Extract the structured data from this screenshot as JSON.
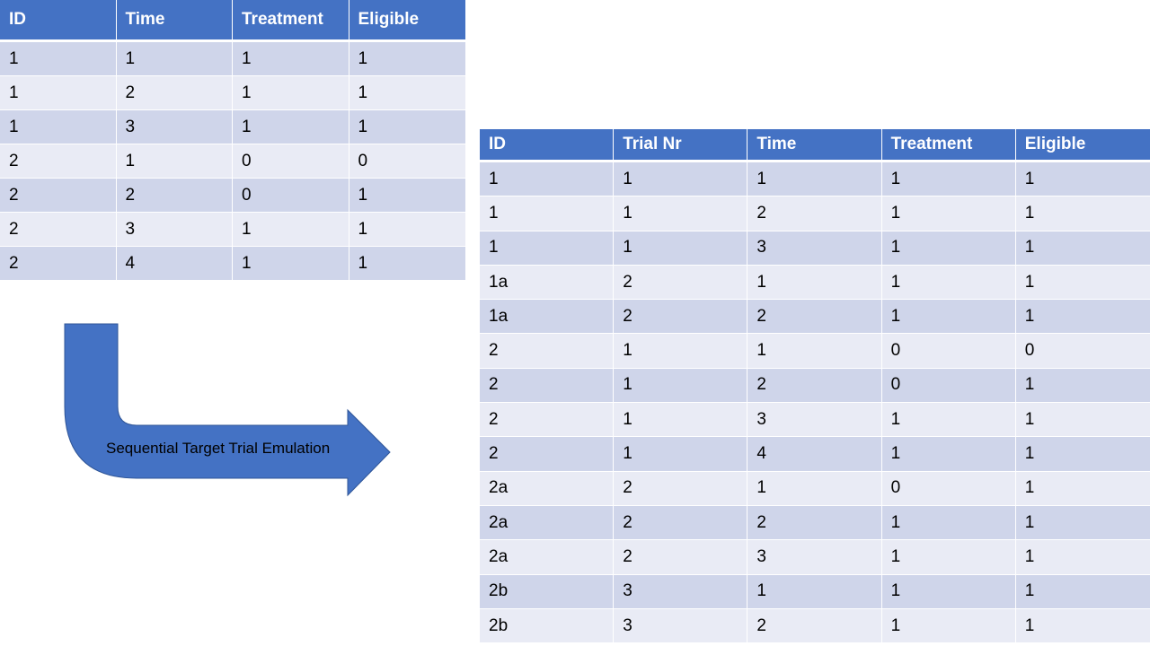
{
  "source_table": {
    "headers": [
      "ID",
      "Time",
      "Treatment",
      "Eligible"
    ],
    "rows": [
      [
        "1",
        "1",
        "1",
        "1"
      ],
      [
        "1",
        "2",
        "1",
        "1"
      ],
      [
        "1",
        "3",
        "1",
        "1"
      ],
      [
        "2",
        "1",
        "0",
        "0"
      ],
      [
        "2",
        "2",
        "0",
        "1"
      ],
      [
        "2",
        "3",
        "1",
        "1"
      ],
      [
        "2",
        "4",
        "1",
        "1"
      ]
    ]
  },
  "arrow": {
    "label": "Sequential Target Trial Emulation",
    "fill_color": "#4472c4"
  },
  "result_table": {
    "headers": [
      "ID",
      "Trial Nr",
      "Time",
      "Treatment",
      "Eligible"
    ],
    "rows": [
      [
        "1",
        "1",
        "1",
        "1",
        "1"
      ],
      [
        "1",
        "1",
        "2",
        "1",
        "1"
      ],
      [
        "1",
        "1",
        "3",
        "1",
        "1"
      ],
      [
        "1a",
        "2",
        "1",
        "1",
        "1"
      ],
      [
        "1a",
        "2",
        "2",
        "1",
        "1"
      ],
      [
        "2",
        "1",
        "1",
        "0",
        "0"
      ],
      [
        "2",
        "1",
        "2",
        "0",
        "1"
      ],
      [
        "2",
        "1",
        "3",
        "1",
        "1"
      ],
      [
        "2",
        "1",
        "4",
        "1",
        "1"
      ],
      [
        "2a",
        "2",
        "1",
        "0",
        "1"
      ],
      [
        "2a",
        "2",
        "2",
        "1",
        "1"
      ],
      [
        "2a",
        "2",
        "3",
        "1",
        "1"
      ],
      [
        "2b",
        "3",
        "1",
        "1",
        "1"
      ],
      [
        "2b",
        "3",
        "2",
        "1",
        "1"
      ]
    ]
  },
  "colors": {
    "header_bg": "#4472c4",
    "row_odd_bg": "#cfd5ea",
    "row_even_bg": "#e9ebf5"
  }
}
